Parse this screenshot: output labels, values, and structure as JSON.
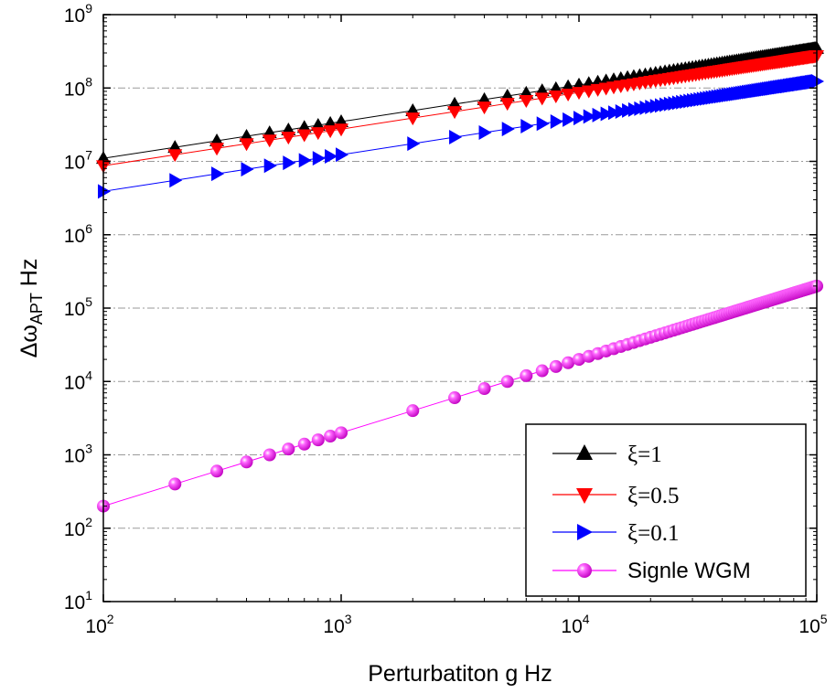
{
  "chart_data": {
    "type": "scatter",
    "x_scale": "log",
    "y_scale": "log",
    "xlim": [
      100,
      100000
    ],
    "ylim": [
      10,
      1000000000
    ],
    "xlabel": "Perturbatiton g Hz",
    "ylabel_parts": {
      "main": "Δω",
      "sub": "APT",
      "unit": " Hz"
    },
    "x_ticks": [
      {
        "value": 100,
        "base": "10",
        "exp": "2"
      },
      {
        "value": 1000,
        "base": "10",
        "exp": "3"
      },
      {
        "value": 10000,
        "base": "10",
        "exp": "4"
      },
      {
        "value": 100000,
        "base": "10",
        "exp": "5"
      }
    ],
    "y_ticks": [
      {
        "value": 10,
        "base": "10",
        "exp": "1"
      },
      {
        "value": 100,
        "base": "10",
        "exp": "2"
      },
      {
        "value": 1000,
        "base": "10",
        "exp": "3"
      },
      {
        "value": 10000,
        "base": "10",
        "exp": "4"
      },
      {
        "value": 100000,
        "base": "10",
        "exp": "5"
      },
      {
        "value": 1000000,
        "base": "10",
        "exp": "6"
      },
      {
        "value": 10000000,
        "base": "10",
        "exp": "7"
      },
      {
        "value": 100000000,
        "base": "10",
        "exp": "8"
      },
      {
        "value": 1000000000,
        "base": "10",
        "exp": "9"
      }
    ],
    "grid": "horizontal dash-dot at major y ticks",
    "legend_position": "bottom-right",
    "x_sampling": "100 to 1000 step 100, 1000 to 10000 step 1000, 10000 to 100000 step 1000",
    "series": [
      {
        "name": "ξ=1",
        "marker": "triangle-up",
        "color": "#000000",
        "y_at_x100": 11000000,
        "y_at_x100000": 350000000,
        "slope": 0.5
      },
      {
        "name": "ξ=0.5",
        "marker": "triangle-down",
        "color": "#ff0000",
        "y_at_x100": 8700000,
        "y_at_x100000": 275000000,
        "slope": 0.5
      },
      {
        "name": "ξ=0.1",
        "marker": "triangle-right",
        "color": "#0000ff",
        "y_at_x100": 3900000,
        "y_at_x100000": 123000000,
        "slope": 0.5
      },
      {
        "name": "Signle WGM",
        "marker": "sphere",
        "color": "#ff00ff",
        "y_at_x100": 200,
        "y_at_x100000": 200000,
        "slope": 1.0
      }
    ]
  }
}
